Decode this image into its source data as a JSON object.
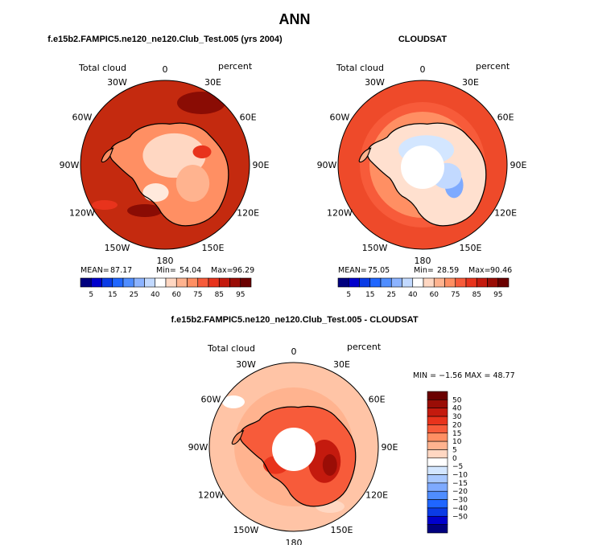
{
  "title": "ANN",
  "panels": [
    {
      "id": "model",
      "subtitle": "f.e15b2.FAMPIC5.ne120_ne120.Club_Test.005 (yrs 2004)",
      "left_label": "Total cloud",
      "right_label": "percent",
      "stats": {
        "mean_label": "MEAN=",
        "mean": "87.17",
        "min_label": "Min=",
        "min": "54.04",
        "max_label": "Max=",
        "max": "96.29"
      }
    },
    {
      "id": "obs",
      "subtitle": "CLOUDSAT",
      "left_label": "Total cloud",
      "right_label": "percent",
      "stats": {
        "mean_label": "MEAN=",
        "mean": "75.05",
        "min_label": "Min=",
        "min": "28.59",
        "max_label": "Max=",
        "max": "90.46"
      }
    },
    {
      "id": "diff",
      "subtitle": "f.e15b2.FAMPIC5.ne120_ne120.Club_Test.005 - CLOUDSAT",
      "left_label": "Total cloud",
      "right_label": "percent",
      "stats_line": "MIN = −1.56 MAX =  48.77"
    }
  ],
  "lon_labels": [
    "0",
    "30E",
    "60E",
    "90E",
    "120E",
    "150E",
    "180",
    "150W",
    "120W",
    "90W",
    "60W",
    "30W"
  ],
  "horizontal_colorbar": {
    "colors": [
      "#00007f",
      "#0000cc",
      "#0a3be6",
      "#1f66ff",
      "#4f8dff",
      "#8cb3ff",
      "#c2d9ff",
      "#ffffff",
      "#ffd7c2",
      "#ffb38f",
      "#ff8f63",
      "#f75b3a",
      "#e8331c",
      "#c41a0e",
      "#9a0d06",
      "#6a0000"
    ],
    "labels": [
      "5",
      "15",
      "25",
      "40",
      "60",
      "75",
      "85",
      "95"
    ]
  },
  "vertical_colorbar": {
    "colors": [
      "#6a0000",
      "#9a0d06",
      "#c41a0e",
      "#e8331c",
      "#f75b3a",
      "#ff8f63",
      "#ffb38f",
      "#ffd7c2",
      "#ffffff",
      "#d3e6ff",
      "#a8c8ff",
      "#7eaaff",
      "#4f8dff",
      "#1f66ff",
      "#0a3be6",
      "#0000cc",
      "#00007f"
    ],
    "labels": [
      "50",
      "40",
      "30",
      "20",
      "15",
      "10",
      "5",
      "0",
      "−5",
      "−10",
      "−15",
      "−20",
      "−30",
      "−40",
      "−50"
    ]
  },
  "colors": {
    "model_ocean": "#c42a0f",
    "obs_ocean": "#ee4a2a",
    "diff_ocean": "#ffc4a6",
    "hole": "#ffffff"
  }
}
